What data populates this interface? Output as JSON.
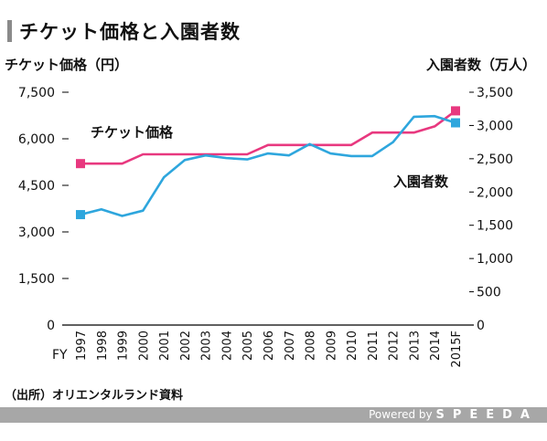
{
  "header": {
    "title": "チケット価格と入園者数"
  },
  "axes": {
    "left_unit": "チケット価格（円）",
    "right_unit": "入園者数（万人）",
    "x_prefix": "FY"
  },
  "source": "（出所）オリエンタルランド資料",
  "footer": {
    "powered_by": "Powered by",
    "brand": "SPEEDA"
  },
  "colors": {
    "ticket": "#e8387f",
    "visitors": "#2ea6dd",
    "footer_bg": "#a7a7a7"
  },
  "chart_data": {
    "type": "line",
    "title": "チケット価格と入園者数",
    "x": [
      "1997",
      "1998",
      "1999",
      "2000",
      "2001",
      "2002",
      "2003",
      "2004",
      "2005",
      "2006",
      "2007",
      "2008",
      "2009",
      "2010",
      "2011",
      "2012",
      "2013",
      "2014",
      "2015F"
    ],
    "xlabel": "FY",
    "y_left": {
      "label": "チケット価格（円）",
      "ylim": [
        0,
        7500
      ],
      "ticks": [
        0,
        1500,
        3000,
        4500,
        6000,
        7500
      ],
      "tick_labels": [
        "0",
        "1,500",
        "3,000",
        "4,500",
        "6,000",
        "7,500"
      ]
    },
    "y_right": {
      "label": "入園者数（万人）",
      "ylim": [
        0,
        3500
      ],
      "ticks": [
        0,
        500,
        1000,
        1500,
        2000,
        2500,
        3000,
        3500
      ],
      "tick_labels": [
        "0",
        "500",
        "1,000",
        "1,500",
        "2,000",
        "2,500",
        "3,000",
        "3,500"
      ]
    },
    "series": [
      {
        "name": "チケット価格",
        "axis": "left",
        "color": "#e8387f",
        "values": [
          5200,
          5200,
          5200,
          5500,
          5500,
          5500,
          5500,
          5500,
          5500,
          5800,
          5800,
          5800,
          5800,
          5800,
          6200,
          6200,
          6200,
          6400,
          6900
        ]
      },
      {
        "name": "入園者数",
        "axis": "right",
        "color": "#2ea6dd",
        "values": [
          1660,
          1740,
          1640,
          1720,
          2220,
          2480,
          2550,
          2510,
          2490,
          2580,
          2550,
          2720,
          2580,
          2540,
          2540,
          2750,
          3130,
          3140,
          3040
        ]
      }
    ],
    "legend": "inline labels",
    "grid": false
  }
}
